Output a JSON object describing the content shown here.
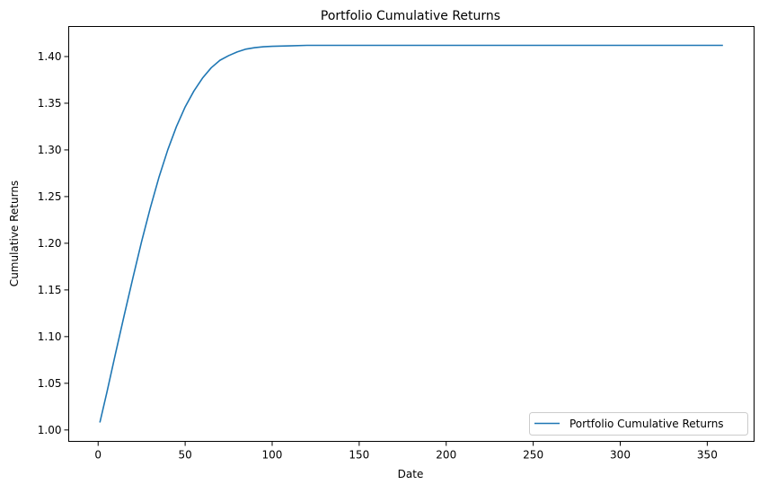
{
  "chart_data": {
    "type": "line",
    "title": "Portfolio Cumulative Returns",
    "xlabel": "Date",
    "ylabel": "Cumulative Returns",
    "xlim": [
      -16.9,
      376.9
    ],
    "ylim": [
      0.9878,
      1.4322
    ],
    "x_ticks": [
      0,
      50,
      100,
      150,
      200,
      250,
      300,
      350
    ],
    "y_ticks": [
      1.0,
      1.05,
      1.1,
      1.15,
      1.2,
      1.25,
      1.3,
      1.35,
      1.4
    ],
    "y_tick_decimals": 2,
    "grid": false,
    "legend_position": "lower right",
    "series": [
      {
        "name": "Portfolio Cumulative Returns",
        "color": "#1f77b4",
        "x": [
          1,
          5,
          10,
          15,
          20,
          25,
          30,
          35,
          40,
          45,
          50,
          55,
          60,
          65,
          70,
          75,
          80,
          85,
          90,
          95,
          100,
          110,
          120,
          130,
          140,
          150,
          175,
          200,
          250,
          300,
          359
        ],
        "y": [
          1.008,
          1.04,
          1.082,
          1.123,
          1.163,
          1.202,
          1.238,
          1.271,
          1.3,
          1.325,
          1.346,
          1.363,
          1.377,
          1.388,
          1.396,
          1.401,
          1.405,
          1.408,
          1.4095,
          1.4105,
          1.411,
          1.4115,
          1.412,
          1.412,
          1.412,
          1.412,
          1.412,
          1.412,
          1.412,
          1.412,
          1.412
        ]
      }
    ]
  }
}
